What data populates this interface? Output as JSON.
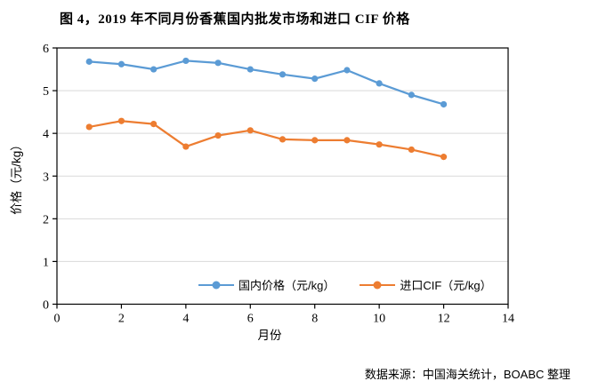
{
  "page": {
    "title": "图 4，2019 年不同月份香蕉国内批发市场和进口 CIF 价格",
    "source_note": "数据来源：中国海关统计，BOABC 整理"
  },
  "chart_data": {
    "type": "line",
    "title": "图 4，2019 年不同月份香蕉国内批发市场和进口 CIF 价格",
    "xlabel": "月份",
    "ylabel": "价格（元/kg）",
    "x": [
      1,
      2,
      3,
      4,
      5,
      6,
      7,
      8,
      9,
      10,
      11,
      12
    ],
    "series": [
      {
        "name": "国内价格（元/kg）",
        "color": "#5B9BD5",
        "values": [
          5.68,
          5.62,
          5.5,
          5.7,
          5.65,
          5.5,
          5.38,
          5.28,
          5.48,
          5.17,
          4.9,
          4.68
        ]
      },
      {
        "name": "进口CIF（元/kg）",
        "color": "#ED7D31",
        "values": [
          4.15,
          4.29,
          4.22,
          3.69,
          3.95,
          4.07,
          3.86,
          3.84,
          3.84,
          3.74,
          3.62,
          3.45
        ]
      }
    ],
    "xlim": [
      0,
      14
    ],
    "ylim": [
      0,
      6
    ],
    "x_ticks": [
      0,
      2,
      4,
      6,
      8,
      10,
      12,
      14
    ],
    "y_ticks": [
      0,
      1,
      2,
      3,
      4,
      5,
      6
    ],
    "grid": "horizontal",
    "gridline_color": "#D9D9D9",
    "axis_color": "#000000",
    "legend_position": "bottom-inside"
  }
}
